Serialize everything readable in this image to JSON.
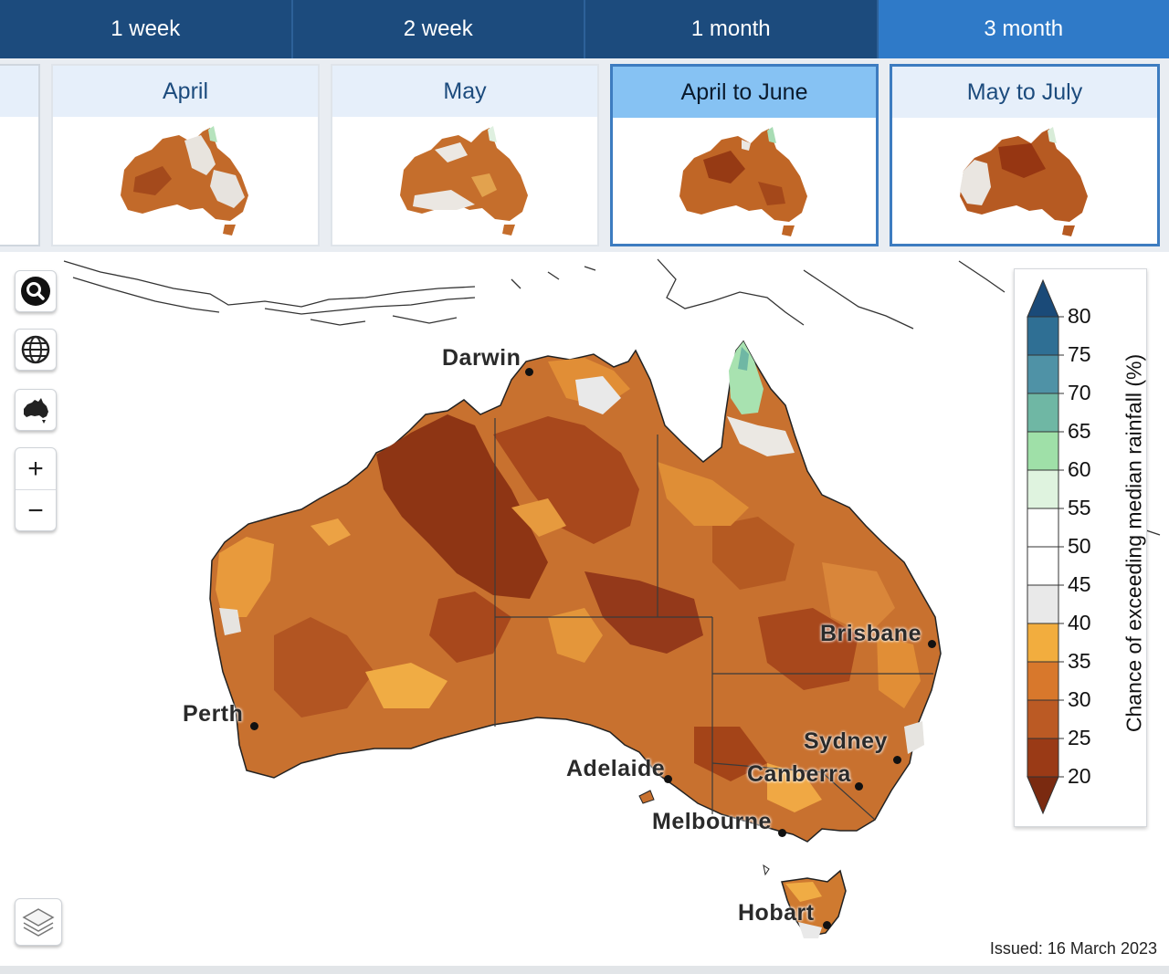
{
  "tabs": [
    {
      "label": "1 week",
      "active": false
    },
    {
      "label": "2 week",
      "active": false
    },
    {
      "label": "1 month",
      "active": false
    },
    {
      "label": "3 month",
      "active": true
    }
  ],
  "thumbnails": [
    {
      "label": "April",
      "active": false
    },
    {
      "label": "May",
      "active": false
    },
    {
      "label": "April to June",
      "active": true
    },
    {
      "label": "May to July",
      "active": false
    }
  ],
  "map": {
    "controls": {
      "search_icon": "search-icon",
      "globe_icon": "globe-icon",
      "australia_icon": "australia-icon",
      "zoom_in_label": "+",
      "zoom_out_label": "−",
      "layers_icon": "layers-icon"
    },
    "cities": {
      "darwin": "Darwin",
      "perth": "Perth",
      "brisbane": "Brisbane",
      "adelaide": "Adelaide",
      "sydney": "Sydney",
      "canberra": "Canberra",
      "melbourne": "Melbourne",
      "hobart": "Hobart"
    },
    "issued": "Issued: 16 March 2023"
  },
  "legend": {
    "title": "Chance of exceeding median rainfall (%)",
    "ticks": [
      "80",
      "75",
      "70",
      "65",
      "60",
      "55",
      "50",
      "45",
      "40",
      "35",
      "30",
      "25",
      "20"
    ],
    "colors": [
      "#1a4a78",
      "#2f6f94",
      "#4f92a6",
      "#6fb7a4",
      "#9fe0a8",
      "#dff3df",
      "#ffffff",
      "#ffffff",
      "#e9e9e9",
      "#f2ad3e",
      "#d8782c",
      "#bb5a24",
      "#9a3a16",
      "#7a2a10"
    ]
  }
}
